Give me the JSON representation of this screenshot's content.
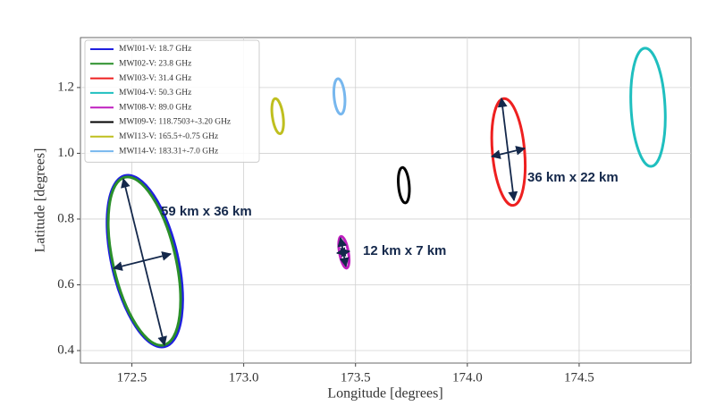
{
  "chart_data": {
    "type": "ellipse",
    "x_label": "Longitude [degrees]",
    "y_label": "Latitude [degrees]",
    "xlim": [
      172.27,
      175.0
    ],
    "xticks": [
      172.5,
      {
        "value": 173,
        "label": "173.0"
      },
      173.5,
      {
        "value": 174,
        "label": "174.0"
      },
      174.5
    ],
    "ylim": [
      0.362,
      1.352
    ],
    "yticks": [
      0.4,
      0.6,
      0.8,
      {
        "value": 1,
        "label": "1.0"
      },
      1.2
    ],
    "grid": true,
    "legend": "upper left",
    "series": [
      {
        "name": "MWI01-V: 18.7 GHz",
        "color": "#1f1fe0",
        "lon": 172.558,
        "lat": 0.672,
        "lon_halfwidth": 0.148,
        "lat_halfheight": 0.267,
        "angle": -13
      },
      {
        "name": "MWI02-V: 23.8 GHz",
        "color": "#2a8f2a",
        "lon": 172.556,
        "lat": 0.672,
        "lon_halfwidth": 0.14,
        "lat_halfheight": 0.262,
        "angle": -13
      },
      {
        "name": "MWI03-V: 31.4 GHz",
        "color": "#ee2020",
        "lon": 174.184,
        "lat": 1.004,
        "lon_halfwidth": 0.072,
        "lat_halfheight": 0.163,
        "angle": -5
      },
      {
        "name": "MWI04-V: 50.3 GHz",
        "color": "#1fbfbf",
        "lon": 174.808,
        "lat": 1.14,
        "lon_halfwidth": 0.076,
        "lat_halfheight": 0.18,
        "angle": -3
      },
      {
        "name": "MWI08-V: 89.0 GHz",
        "color": "#bf1fbf",
        "lon": 173.448,
        "lat": 0.699,
        "lon_halfwidth": 0.02,
        "lat_halfheight": 0.049,
        "angle": -10
      },
      {
        "name": "MWI09-V: 118.7503+-3.20 GHz",
        "color": "#000000",
        "lon": 173.716,
        "lat": 0.903,
        "lon_halfwidth": 0.024,
        "lat_halfheight": 0.054,
        "angle": -5
      },
      {
        "name": "MWI13-V: 165.5+-0.75 GHz",
        "color": "#bfbf1f",
        "lon": 173.152,
        "lat": 1.113,
        "lon_halfwidth": 0.024,
        "lat_halfheight": 0.054,
        "angle": -8
      },
      {
        "name": "MWI14-V: 183.31+-7.0 GHz",
        "color": "#77b7ee",
        "lon": 173.428,
        "lat": 1.173,
        "lon_halfwidth": 0.024,
        "lat_halfheight": 0.054,
        "angle": -5
      }
    ],
    "annotations": [
      "59 km x 36 km",
      "12 km x 7 km",
      "36 km x 22 km"
    ]
  }
}
